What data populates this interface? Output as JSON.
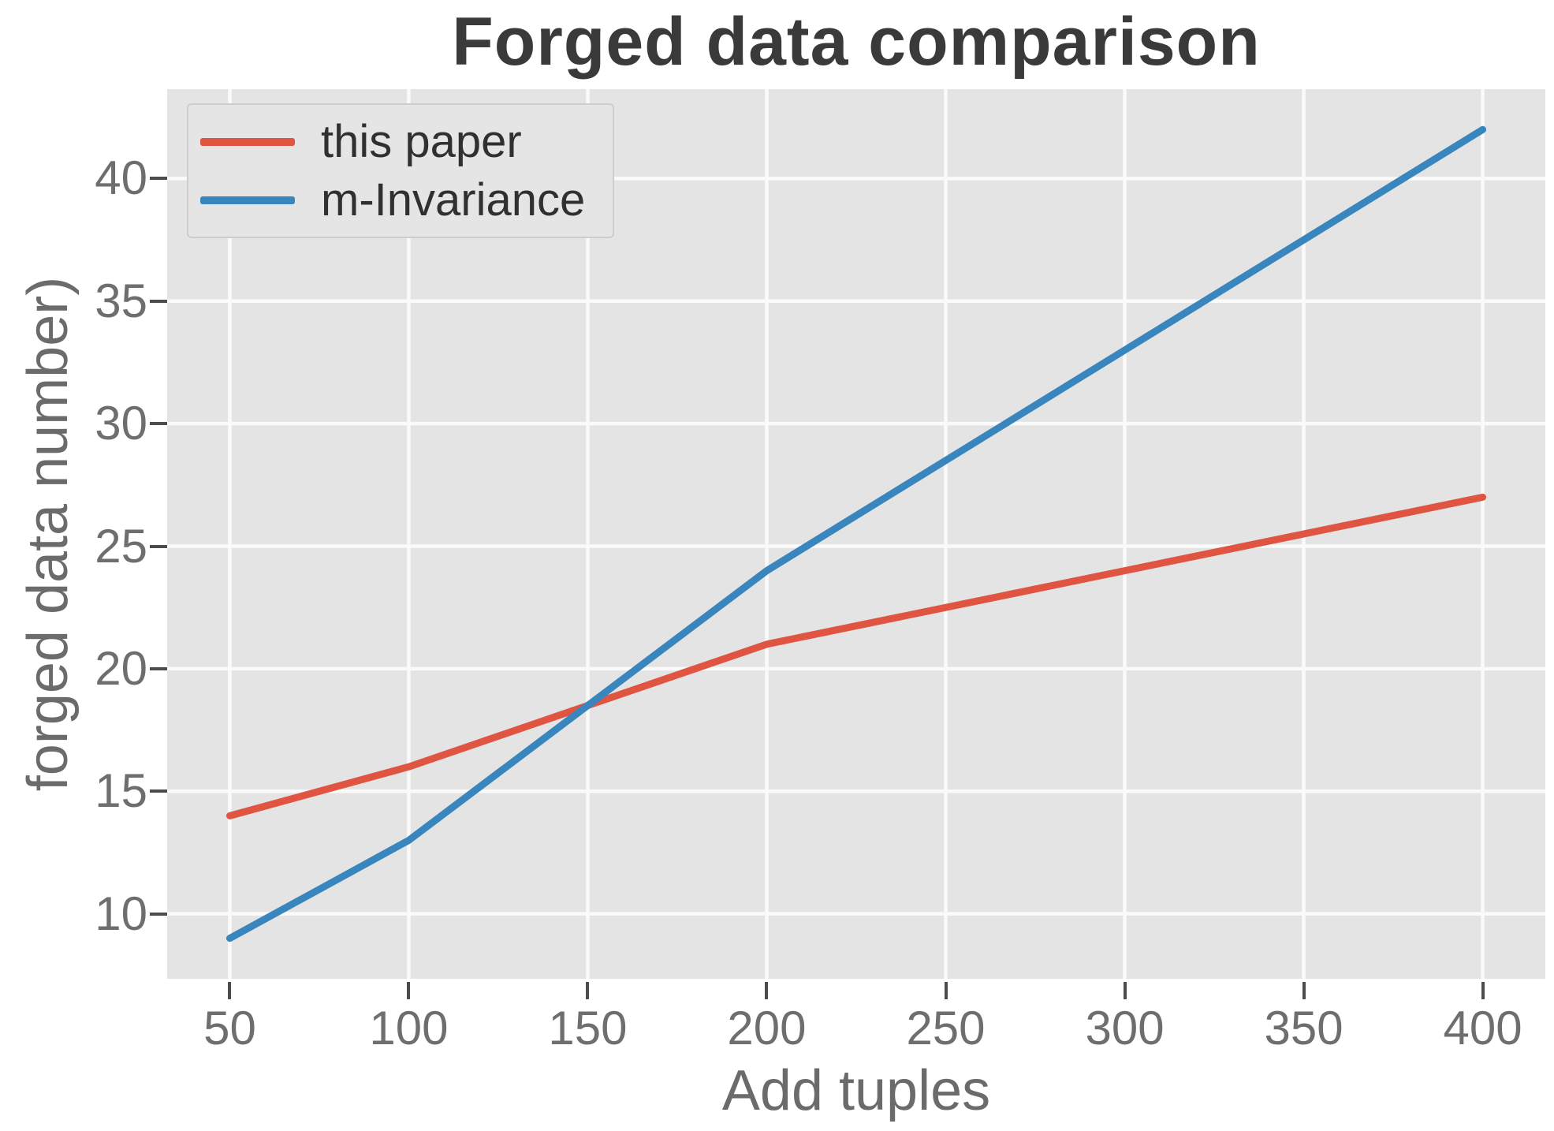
{
  "chart_data": {
    "type": "line",
    "title": "Forged data comparison",
    "xlabel": "Add tuples",
    "ylabel": "forged data number)",
    "x": [
      50,
      100,
      150,
      200,
      250,
      300,
      350,
      400
    ],
    "series": [
      {
        "name": "this paper",
        "color": "#e05442",
        "values": [
          14,
          16,
          18.5,
          21,
          22.5,
          24,
          25.5,
          27
        ]
      },
      {
        "name": "m-Invariance",
        "color": "#3886bd",
        "values": [
          9,
          13,
          18.5,
          24,
          28.5,
          33,
          37.5,
          42
        ]
      }
    ],
    "xticks": [
      50,
      100,
      150,
      200,
      250,
      300,
      350,
      400
    ],
    "yticks": [
      10,
      15,
      20,
      25,
      30,
      35,
      40
    ],
    "xlim": [
      32.5,
      417.5
    ],
    "ylim": [
      7.35,
      43.65
    ],
    "grid": true,
    "gridline_color": "#fafafa",
    "plot_background": "#e4e4e4",
    "legend_position": "upper left",
    "line_width": 9
  }
}
